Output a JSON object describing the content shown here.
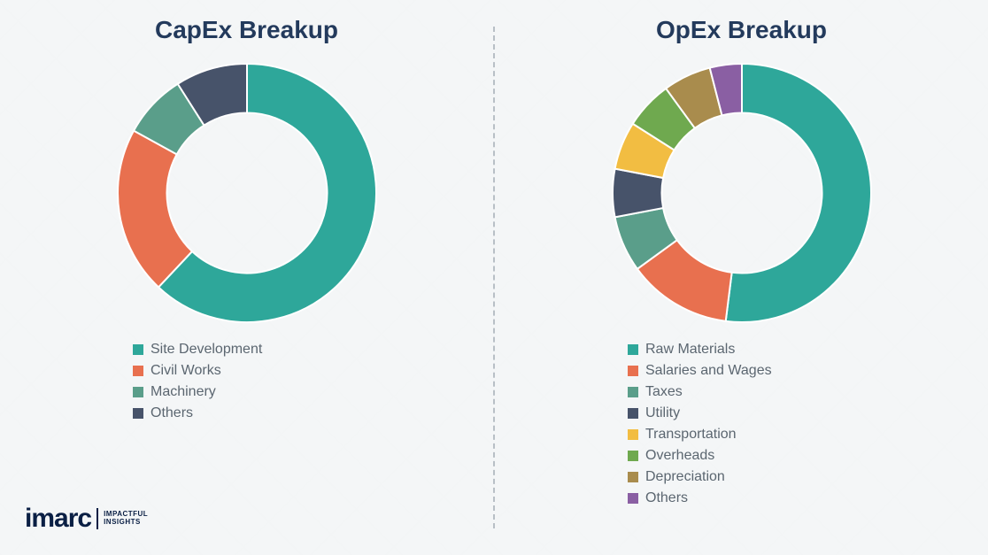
{
  "logo": {
    "brand": "imarc",
    "tagline_line1": "IMPACTFUL",
    "tagline_line2": "INSIGHTS"
  },
  "divider_color": "#b8bfc6",
  "background_color": "#f4f6f7",
  "title_color": "#233a5c",
  "legend_text_color": "#5b6670",
  "charts": [
    {
      "title": "CapEx Breakup",
      "type": "donut",
      "inner_radius_pct": 62,
      "start_angle_deg": 0,
      "segments": [
        {
          "label": "Site Development",
          "value": 62,
          "color": "#2ea79a"
        },
        {
          "label": "Civil Works",
          "value": 21,
          "color": "#e8704f"
        },
        {
          "label": "Machinery",
          "value": 8,
          "color": "#5a9e8a"
        },
        {
          "label": "Others",
          "value": 9,
          "color": "#47536a"
        }
      ]
    },
    {
      "title": "OpEx Breakup",
      "type": "donut",
      "inner_radius_pct": 62,
      "start_angle_deg": 0,
      "segments": [
        {
          "label": "Raw Materials",
          "value": 52,
          "color": "#2ea79a"
        },
        {
          "label": "Salaries and Wages",
          "value": 13,
          "color": "#e8704f"
        },
        {
          "label": "Taxes",
          "value": 7,
          "color": "#5a9e8a"
        },
        {
          "label": "Utility",
          "value": 6,
          "color": "#47536a"
        },
        {
          "label": "Transportation",
          "value": 6,
          "color": "#f2bd42"
        },
        {
          "label": "Overheads",
          "value": 6,
          "color": "#6fa94f"
        },
        {
          "label": "Depreciation",
          "value": 6,
          "color": "#a98c4d"
        },
        {
          "label": "Others",
          "value": 4,
          "color": "#8a5fa3"
        }
      ]
    }
  ]
}
